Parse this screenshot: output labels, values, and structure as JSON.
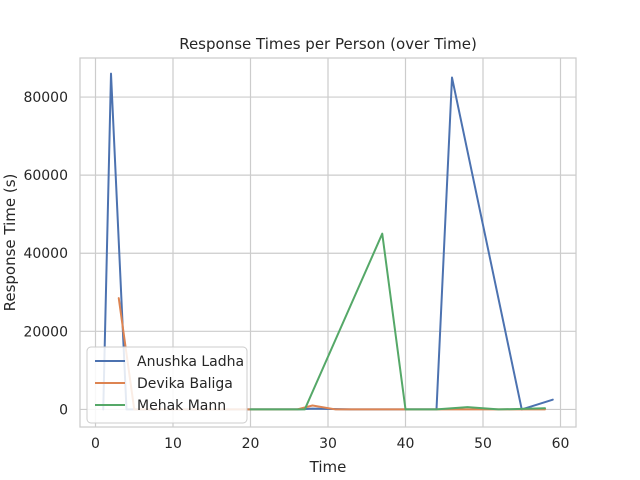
{
  "chart_data": {
    "type": "line",
    "title": "Response Times per Person (over Time)",
    "xlabel": "Time",
    "ylabel": "Response Time (s)",
    "xlim": [
      -2,
      62
    ],
    "ylim": [
      -4500,
      90000
    ],
    "xticks": [
      0,
      10,
      20,
      30,
      40,
      50,
      60
    ],
    "yticks": [
      0,
      20000,
      40000,
      60000,
      80000
    ],
    "xtick_labels": [
      "0",
      "10",
      "20",
      "30",
      "40",
      "50",
      "60"
    ],
    "ytick_labels": [
      "0",
      "20000",
      "40000",
      "60000",
      "80000"
    ],
    "grid": true,
    "legend_placement": "lower-left",
    "series": [
      {
        "name": "Anushka Ladha",
        "color": "#4c72b0",
        "points": [
          [
            1,
            0
          ],
          [
            2,
            86000
          ],
          [
            4,
            0
          ],
          [
            20,
            0
          ],
          [
            26,
            0
          ],
          [
            28,
            200
          ],
          [
            33,
            0
          ],
          [
            44,
            0
          ],
          [
            46,
            85000
          ],
          [
            55,
            0
          ],
          [
            59,
            2500
          ]
        ]
      },
      {
        "name": "Devika Baliga",
        "color": "#dd8452",
        "points": [
          [
            3,
            28500
          ],
          [
            5,
            0
          ],
          [
            20,
            0
          ],
          [
            26,
            0
          ],
          [
            28,
            1000
          ],
          [
            31,
            0
          ],
          [
            37,
            0
          ],
          [
            48,
            0
          ],
          [
            58,
            0
          ]
        ]
      },
      {
        "name": "Mehak Mann",
        "color": "#55a868",
        "points": [
          [
            20,
            0
          ],
          [
            27,
            0
          ],
          [
            37,
            45000
          ],
          [
            40,
            0
          ],
          [
            44,
            0
          ],
          [
            48,
            600
          ],
          [
            52,
            0
          ],
          [
            58,
            300
          ]
        ]
      }
    ]
  }
}
